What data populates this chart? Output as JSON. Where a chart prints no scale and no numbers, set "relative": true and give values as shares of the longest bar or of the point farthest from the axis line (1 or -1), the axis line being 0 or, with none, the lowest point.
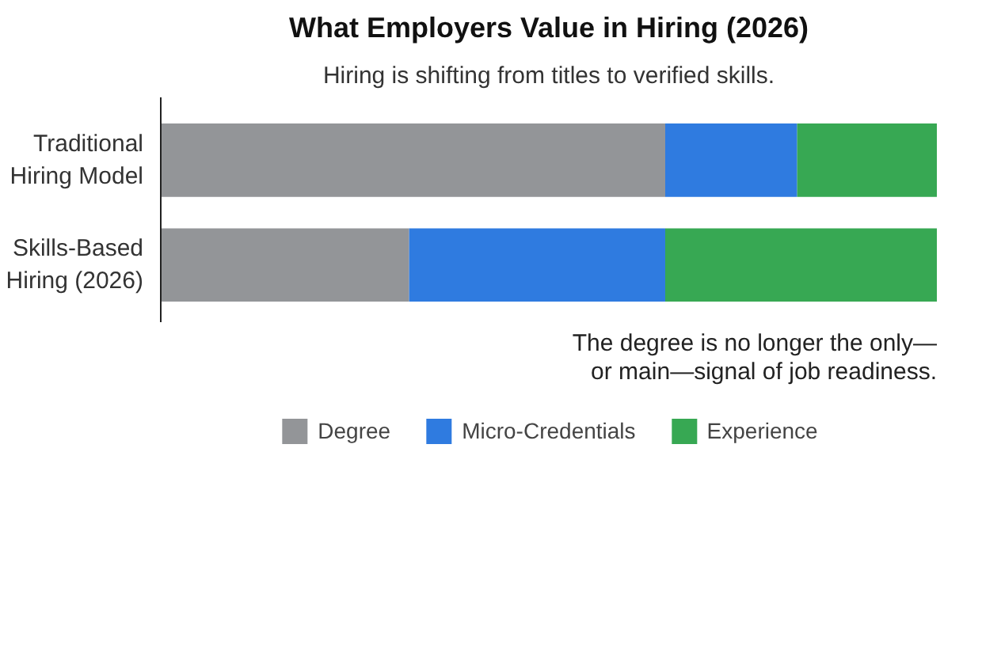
{
  "chart_data": {
    "type": "bar",
    "orientation": "horizontal",
    "stacked": true,
    "relative": true,
    "title": "What Employers Value in Hiring (2026)",
    "subtitle": "Hiring is shifting from titles to verified skills.",
    "categories": [
      "Traditional Hiring Model",
      "Skills-Based Hiring (2026)"
    ],
    "series": [
      {
        "name": "Degree",
        "color": "#939598",
        "values": [
          0.65,
          0.32
        ]
      },
      {
        "name": "Micro-Credentials",
        "color": "#2f7be0",
        "values": [
          0.17,
          0.33
        ]
      },
      {
        "name": "Experience",
        "color": "#37a853",
        "values": [
          0.18,
          0.35
        ]
      }
    ],
    "annotations": [
      "The degree is no longer the only—or main—signal of job readiness."
    ],
    "legend": "bottom",
    "grid": false
  }
}
